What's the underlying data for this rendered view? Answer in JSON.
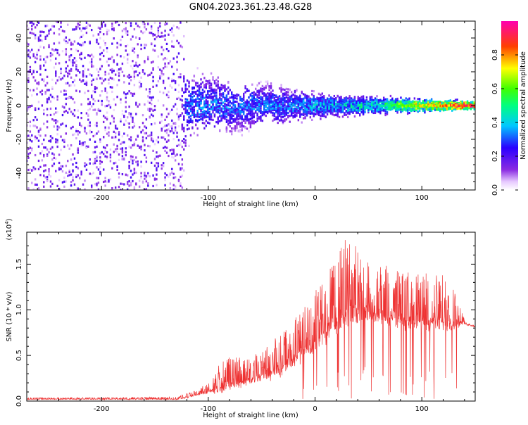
{
  "title": "GN04.2023.361.23.48.G28",
  "colors": {
    "snr_line": "#ee3333",
    "background": "#ffffff",
    "axis": "#000000"
  },
  "chart_data": [
    {
      "type": "heatmap",
      "xlabel": "Height of straight line (km)",
      "ylabel": "Frequency (Hz)",
      "xlim": [
        -270,
        150
      ],
      "ylim": [
        -50,
        50
      ],
      "x_ticks": [
        -200,
        -100,
        0,
        100
      ],
      "y_ticks": [
        -40,
        -20,
        0,
        20,
        40
      ],
      "colorbar": {
        "label": "Normalized spectral amplitude",
        "range": [
          0.0,
          1.0
        ],
        "ticks": [
          0.0,
          0.2,
          0.4,
          0.6,
          0.8
        ],
        "colormap": "rainbow (white-violet-blue-cyan-green-yellow-red-magenta)"
      },
      "description_points": [
        {
          "x": -270,
          "spread_hz": 50,
          "amplitude": 0.15
        },
        {
          "x": -125,
          "spread_hz": 50,
          "amplitude": 0.15
        },
        {
          "x": -120,
          "spread_hz": 15,
          "amplitude": 0.3
        },
        {
          "x": -50,
          "spread_hz": 10,
          "amplitude": 0.3
        },
        {
          "x": 0,
          "spread_hz": 6,
          "amplitude": 0.35
        },
        {
          "x": 60,
          "spread_hz": 4,
          "amplitude": 0.45
        },
        {
          "x": 100,
          "spread_hz": 3,
          "amplitude": 0.7
        },
        {
          "x": 150,
          "spread_hz": 2,
          "amplitude": 0.9
        }
      ]
    },
    {
      "type": "line",
      "xlabel": "Height of straight line (km)",
      "ylabel": "SNR (10 * v/v)",
      "y_multiplier": "(x10^4)",
      "xlim": [
        -270,
        150
      ],
      "ylim": [
        0,
        1.85
      ],
      "x_ticks": [
        -200,
        -100,
        0,
        100
      ],
      "y_ticks": [
        0.0,
        0.5,
        1.0,
        1.5
      ],
      "series": [
        {
          "x": [
            -270,
            -200,
            -130,
            -115,
            -100,
            -85,
            -70,
            -50,
            -30,
            -15,
            0,
            15,
            30,
            50,
            70,
            90,
            110,
            130,
            140,
            150
          ],
          "y_base": [
            0.02,
            0.02,
            0.02,
            0.05,
            0.1,
            0.15,
            0.2,
            0.25,
            0.35,
            0.5,
            0.6,
            0.8,
            0.95,
            0.95,
            0.9,
            0.85,
            0.85,
            0.85,
            0.85,
            0.82
          ],
          "y_peak": [
            0.04,
            0.04,
            0.05,
            0.1,
            0.2,
            0.5,
            0.5,
            0.55,
            0.8,
            1.0,
            1.2,
            1.5,
            1.8,
            1.65,
            1.5,
            1.4,
            1.45,
            1.3,
            0.9,
            0.85
          ]
        }
      ]
    }
  ]
}
